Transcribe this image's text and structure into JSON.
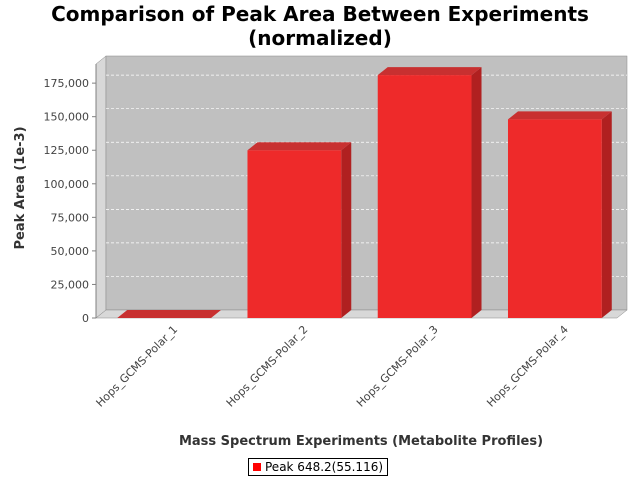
{
  "chart_data": {
    "type": "bar",
    "title_lines": [
      "Comparison of Peak Area Between Experiments",
      "(normalized)"
    ],
    "xlabel": "Mass Spectrum Experiments (Metabolite Profiles)",
    "ylabel": "Peak Area (1e-3)",
    "categories": [
      "Hops_GCMS-Polar_1",
      "Hops_GCMS-Polar_2",
      "Hops_GCMS-Polar_3",
      "Hops_GCMS-Polar_4"
    ],
    "series": [
      {
        "name": "Peak 648.2(55.116)",
        "values": [
          0,
          125000,
          181000,
          148000
        ],
        "color": "#ee2a2a"
      }
    ],
    "ylim": [
      0,
      190000
    ],
    "yticks": [
      0,
      25000,
      50000,
      75000,
      100000,
      125000,
      150000,
      175000
    ],
    "ytick_labels": [
      "0",
      "25,000",
      "50,000",
      "75,000",
      "100,000",
      "125,000",
      "150,000",
      "175,000"
    ],
    "grid": true,
    "legend_position": "bottom",
    "plot_background": "#c0c0c0"
  }
}
